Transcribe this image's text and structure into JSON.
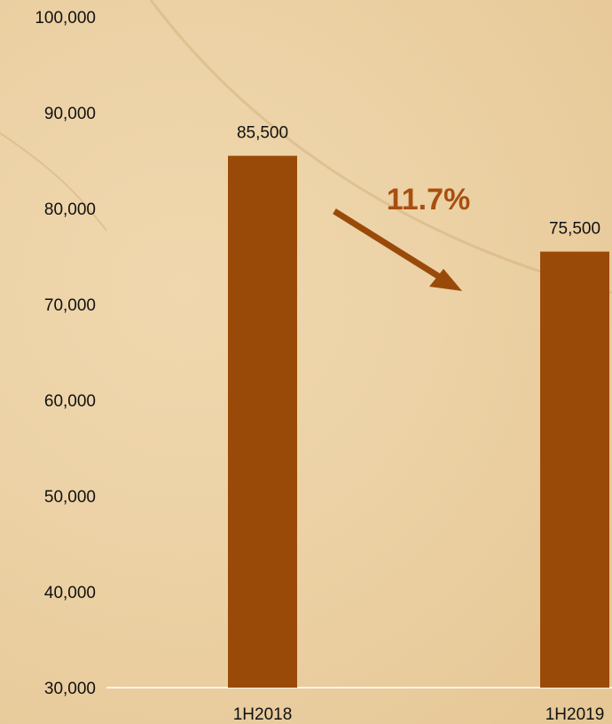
{
  "chart_data": {
    "type": "bar",
    "categories": [
      "1H2018",
      "1H2019"
    ],
    "values": [
      85500,
      75500
    ],
    "data_labels": [
      "85,500",
      "75,500"
    ],
    "ylim": [
      30000,
      100000
    ],
    "y_ticks": [
      30000,
      40000,
      50000,
      60000,
      70000,
      80000,
      90000,
      100000
    ],
    "y_tick_labels": [
      "30,000",
      "40,000",
      "50,000",
      "60,000",
      "70,000",
      "80,000",
      "90,000",
      "100,000"
    ],
    "grid": false,
    "bar_color": "#9a4a08",
    "annotation": {
      "text": "11.7%",
      "color": "#a84f10",
      "direction": "decrease"
    }
  }
}
